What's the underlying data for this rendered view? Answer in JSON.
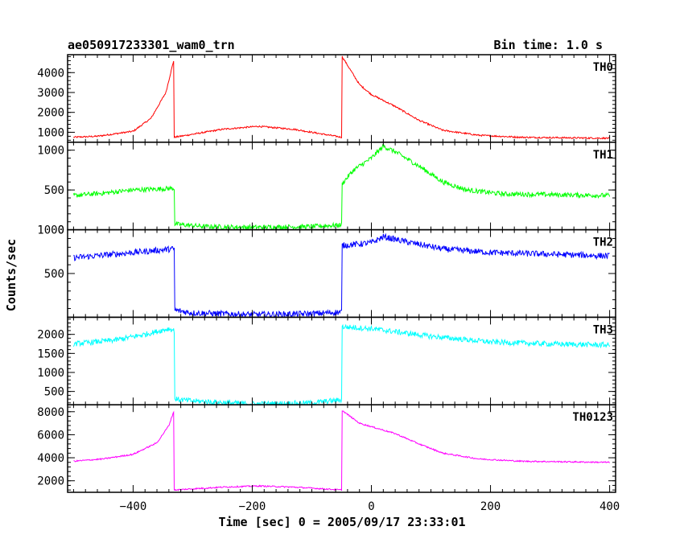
{
  "header": {
    "title": "ae050917233301_wam0_trn",
    "bin_time": "Bin time: 1.0 s"
  },
  "chart_data": {
    "type": "line",
    "xlabel": "Time [sec] 0 = 2005/09/17 23:33:01",
    "ylabel": "Counts/sec",
    "xlim": [
      -510,
      410
    ],
    "x_ticks": [
      -400,
      -200,
      0,
      200,
      400
    ],
    "x_tick_labels": [
      "−400",
      "−200",
      "0",
      "200",
      "400"
    ],
    "grid": false,
    "panels": [
      {
        "name": "TH0",
        "color": "#ff0000",
        "ylim": [
          500,
          4900
        ],
        "y_ticks": [
          1000,
          2000,
          3000,
          4000
        ],
        "y_tick_labels": [
          "1000",
          "2000",
          "3000",
          "4000"
        ],
        "noise": 40,
        "profile": [
          [
            -500,
            750
          ],
          [
            -460,
            800
          ],
          [
            -400,
            1050
          ],
          [
            -370,
            1700
          ],
          [
            -345,
            3000
          ],
          [
            -332,
            4600
          ],
          [
            -331,
            750
          ],
          [
            -300,
            900
          ],
          [
            -250,
            1150
          ],
          [
            -190,
            1300
          ],
          [
            -130,
            1150
          ],
          [
            -80,
            900
          ],
          [
            -50,
            750
          ],
          [
            -49,
            4800
          ],
          [
            -20,
            3400
          ],
          [
            0,
            2900
          ],
          [
            40,
            2300
          ],
          [
            80,
            1600
          ],
          [
            120,
            1100
          ],
          [
            180,
            850
          ],
          [
            250,
            750
          ],
          [
            400,
            700
          ]
        ]
      },
      {
        "name": "TH1",
        "color": "#00ff00",
        "ylim": [
          0,
          1100
        ],
        "y_ticks": [
          0,
          500,
          1000
        ],
        "y_tick_labels": [
          "0",
          "500",
          "1000"
        ],
        "noise": 30,
        "profile": [
          [
            -500,
            430
          ],
          [
            -450,
            460
          ],
          [
            -400,
            500
          ],
          [
            -335,
            520
          ],
          [
            -331,
            520
          ],
          [
            -330,
            70
          ],
          [
            -280,
            40
          ],
          [
            -200,
            30
          ],
          [
            -100,
            40
          ],
          [
            -50,
            60
          ],
          [
            -49,
            580
          ],
          [
            -30,
            750
          ],
          [
            0,
            900
          ],
          [
            20,
            1050
          ],
          [
            40,
            980
          ],
          [
            80,
            800
          ],
          [
            120,
            600
          ],
          [
            160,
            500
          ],
          [
            220,
            450
          ],
          [
            400,
            430
          ]
        ]
      },
      {
        "name": "TH2",
        "color": "#0000ff",
        "ylim": [
          0,
          1000
        ],
        "y_ticks": [
          500,
          1000
        ],
        "y_tick_labels": [
          "500",
          "1000"
        ],
        "noise": 35,
        "profile": [
          [
            -500,
            680
          ],
          [
            -400,
            740
          ],
          [
            -335,
            780
          ],
          [
            -331,
            780
          ],
          [
            -330,
            80
          ],
          [
            -300,
            50
          ],
          [
            -200,
            30
          ],
          [
            -100,
            40
          ],
          [
            -50,
            60
          ],
          [
            -49,
            820
          ],
          [
            0,
            850
          ],
          [
            20,
            920
          ],
          [
            60,
            860
          ],
          [
            120,
            780
          ],
          [
            200,
            740
          ],
          [
            400,
            700
          ]
        ]
      },
      {
        "name": "TH3",
        "color": "#00ffff",
        "ylim": [
          150,
          2450
        ],
        "y_ticks": [
          500,
          1000,
          1500,
          2000
        ],
        "y_tick_labels": [
          "500",
          "1000",
          "1500",
          "2000"
        ],
        "noise": 70,
        "profile": [
          [
            -500,
            1750
          ],
          [
            -430,
            1850
          ],
          [
            -380,
            2000
          ],
          [
            -340,
            2150
          ],
          [
            -331,
            2100
          ],
          [
            -330,
            300
          ],
          [
            -300,
            250
          ],
          [
            -200,
            170
          ],
          [
            -100,
            200
          ],
          [
            -50,
            280
          ],
          [
            -49,
            2200
          ],
          [
            0,
            2150
          ],
          [
            50,
            2050
          ],
          [
            100,
            1950
          ],
          [
            200,
            1800
          ],
          [
            300,
            1750
          ],
          [
            400,
            1720
          ]
        ]
      },
      {
        "name": "TH0123",
        "color": "#ff00ff",
        "ylim": [
          1000,
          8600
        ],
        "y_ticks": [
          2000,
          4000,
          6000,
          8000
        ],
        "y_tick_labels": [
          "2000",
          "4000",
          "6000",
          "8000"
        ],
        "noise": 60,
        "profile": [
          [
            -500,
            3700
          ],
          [
            -450,
            3900
          ],
          [
            -400,
            4300
          ],
          [
            -360,
            5300
          ],
          [
            -340,
            6800
          ],
          [
            -332,
            8000
          ],
          [
            -331,
            1200
          ],
          [
            -300,
            1300
          ],
          [
            -250,
            1450
          ],
          [
            -190,
            1550
          ],
          [
            -130,
            1450
          ],
          [
            -80,
            1300
          ],
          [
            -50,
            1200
          ],
          [
            -49,
            8100
          ],
          [
            -20,
            7000
          ],
          [
            0,
            6700
          ],
          [
            40,
            6100
          ],
          [
            80,
            5200
          ],
          [
            120,
            4400
          ],
          [
            180,
            3900
          ],
          [
            250,
            3700
          ],
          [
            400,
            3600
          ]
        ]
      }
    ]
  }
}
